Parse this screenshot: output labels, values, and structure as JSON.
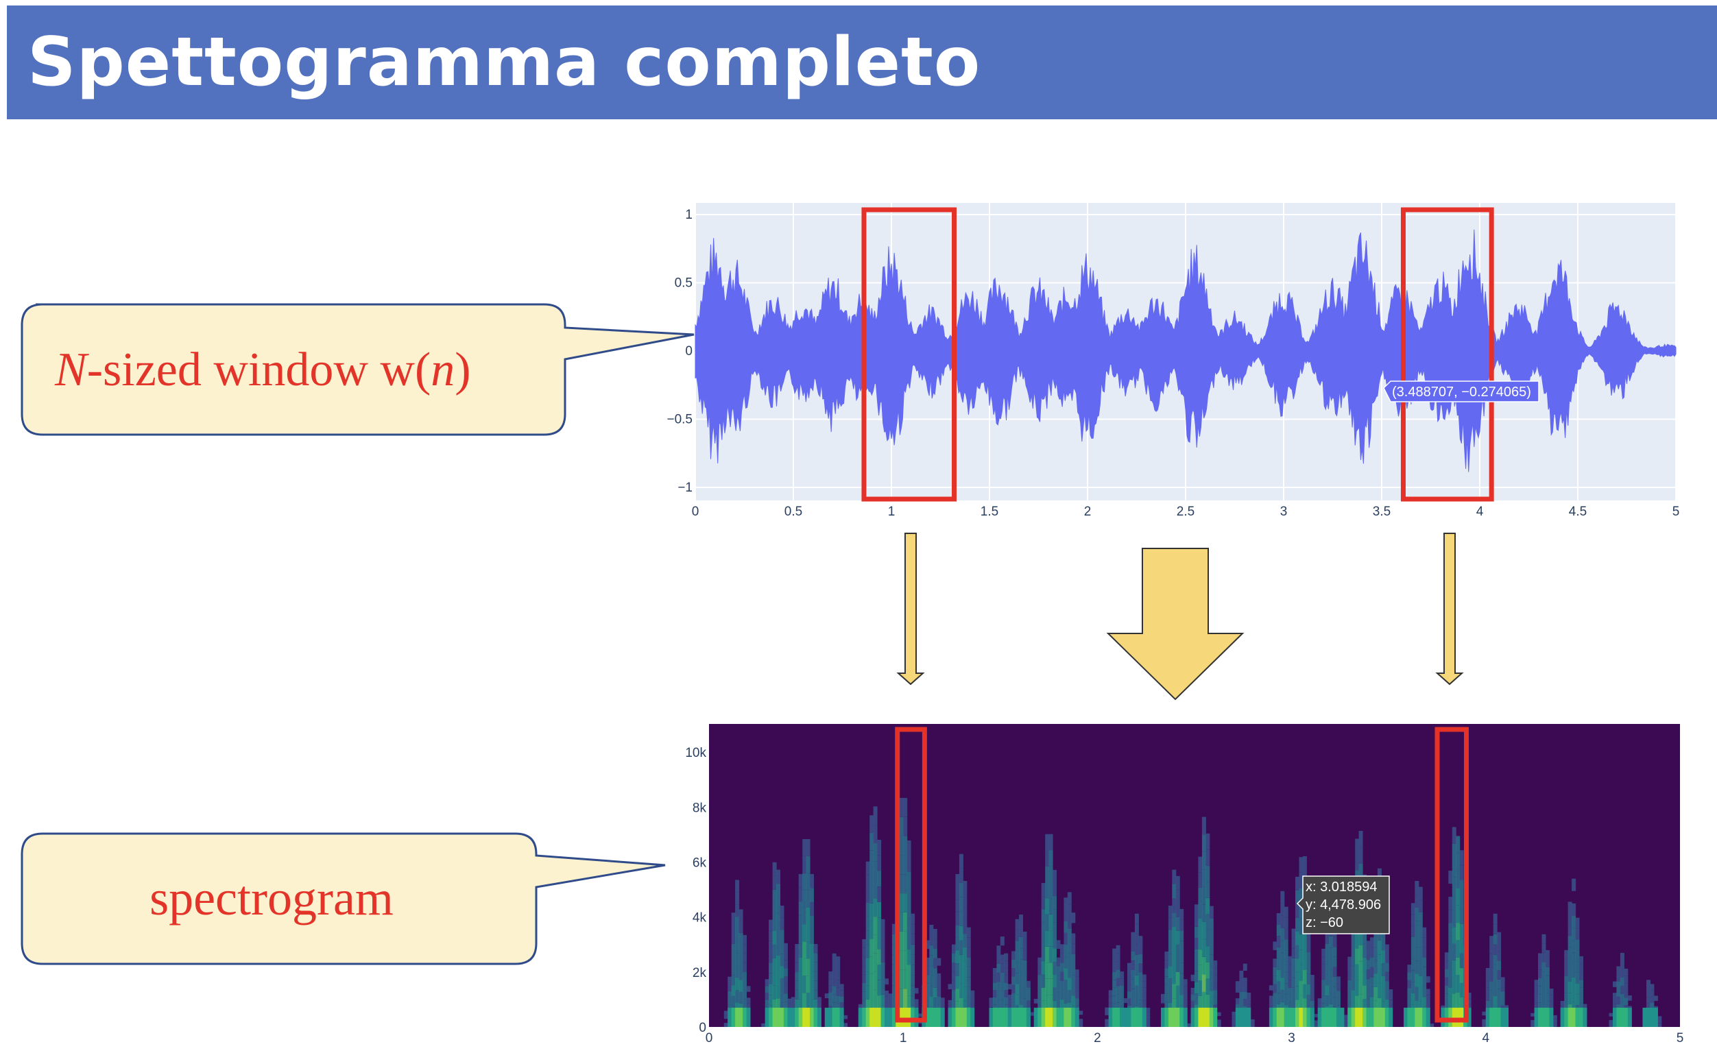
{
  "slide": {
    "title": "Spettogramma completo"
  },
  "callouts": {
    "window": {
      "italic_n": "N",
      "text_mid": "-sized window w(",
      "italic_n2": "n",
      "text_end": ")"
    },
    "spectrogram": {
      "text": "spectrogram"
    }
  },
  "colors": {
    "title_bar": "#5272bf",
    "callout_fill": "#fdf2cf",
    "callout_border": "#2f4b8a",
    "callout_text": "#e3342a",
    "waveform": "#6369f0",
    "waveform_bg": "#e5ecf6",
    "highlight_box": "#e53228",
    "arrow_fill": "#f6d87a",
    "spectrogram_bg": "#3b0a52"
  },
  "waveform": {
    "x_ticks": [
      "0",
      "0.5",
      "1",
      "1.5",
      "2",
      "2.5",
      "3",
      "3.5",
      "4",
      "4.5",
      "5"
    ],
    "y_ticks": [
      "1",
      "0.5",
      "0",
      "−0.5",
      "−1"
    ],
    "hover": "(3.488707, −0.274065)",
    "highlight_windows_x": [
      [
        0.86,
        1.32
      ],
      [
        3.61,
        4.06
      ]
    ]
  },
  "spectrogram": {
    "x_ticks": [
      "0",
      "1",
      "2",
      "3",
      "4",
      "5"
    ],
    "y_ticks": [
      "10k",
      "8k",
      "6k",
      "4k",
      "2k",
      "0"
    ],
    "hover": {
      "x": "x: 3.018594",
      "y": "y: 4,478.906",
      "z": "z: −60"
    },
    "highlight_windows_x": [
      [
        0.97,
        1.11
      ],
      [
        3.75,
        3.9
      ]
    ]
  },
  "chart_data": [
    {
      "type": "line",
      "title": "",
      "xlabel": "",
      "ylabel": "",
      "xlim": [
        0,
        5
      ],
      "ylim": [
        -1.05,
        1.05
      ],
      "series": [
        {
          "x": [
            0.1,
            0.2,
            0.4,
            0.55,
            0.7,
            0.85,
            1.0,
            1.2,
            1.4,
            1.55,
            1.75,
            1.9,
            2.0,
            2.2,
            2.35,
            2.55,
            2.75,
            3.0,
            3.25,
            3.4,
            3.6,
            3.8,
            3.95,
            4.2,
            4.4,
            4.7,
            4.95
          ],
          "values": [
            0.85,
            0.7,
            0.45,
            0.4,
            0.6,
            0.45,
            0.8,
            0.35,
            0.5,
            0.6,
            0.55,
            0.5,
            0.75,
            0.35,
            0.45,
            0.8,
            0.3,
            0.5,
            0.55,
            0.9,
            0.55,
            0.6,
            0.95,
            0.4,
            0.75,
            0.4,
            0.05
          ]
        }
      ]
    },
    {
      "type": "heatmap",
      "title": "",
      "xlabel": "",
      "ylabel": "",
      "xlim": [
        0,
        5
      ],
      "ylim": [
        0,
        11025
      ],
      "x": [
        0.15,
        0.35,
        0.5,
        0.65,
        0.85,
        1.0,
        1.15,
        1.3,
        1.5,
        1.6,
        1.75,
        1.85,
        2.1,
        2.2,
        2.4,
        2.55,
        2.75,
        2.95,
        3.05,
        3.2,
        3.35,
        3.45,
        3.65,
        3.85,
        4.05,
        4.3,
        4.45,
        4.7,
        4.85
      ],
      "values": [
        0.6,
        0.7,
        0.85,
        0.4,
        0.9,
        0.95,
        0.5,
        0.7,
        0.45,
        0.55,
        0.8,
        0.6,
        0.4,
        0.5,
        0.7,
        0.85,
        0.35,
        0.6,
        0.75,
        0.55,
        0.8,
        0.7,
        0.65,
        0.85,
        0.5,
        0.45,
        0.6,
        0.4,
        0.3
      ]
    }
  ]
}
